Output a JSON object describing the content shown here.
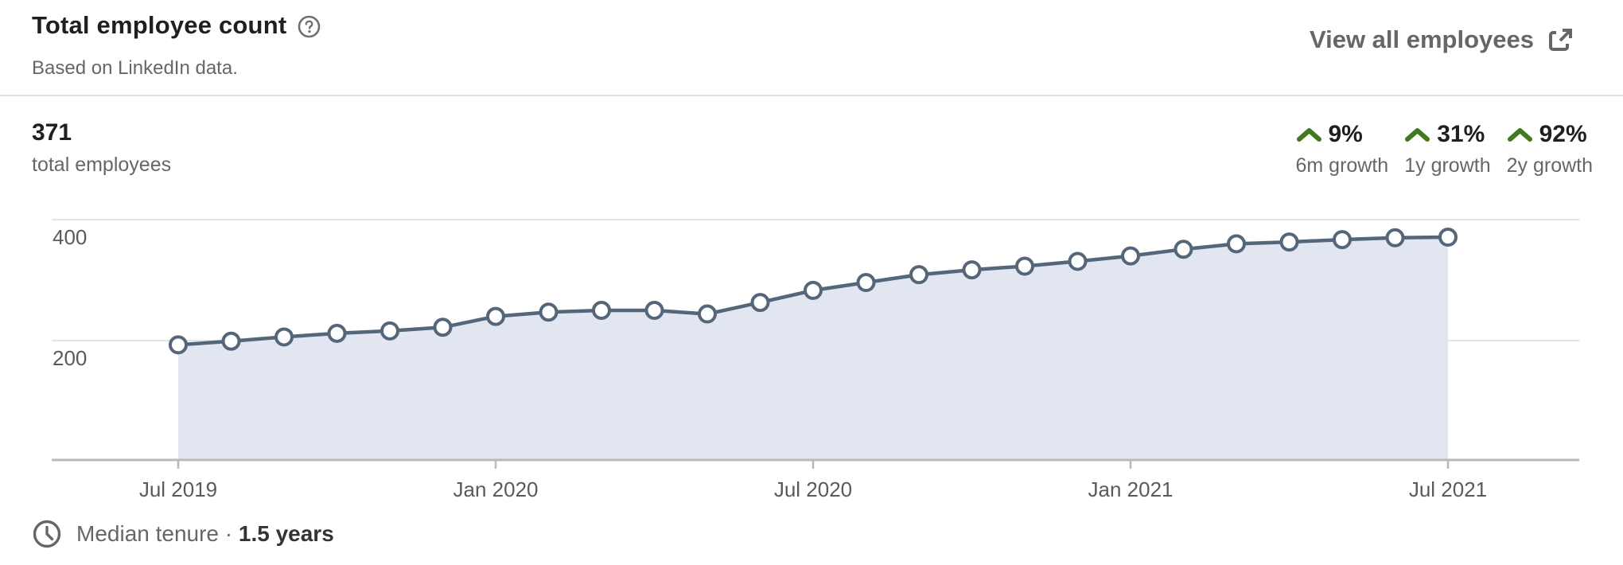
{
  "header": {
    "title": "Total employee count",
    "subtitle": "Based on LinkedIn data.",
    "view_all_label": "View all employees"
  },
  "summary": {
    "value": "371",
    "label": "total employees"
  },
  "growth_stats": [
    {
      "value": "9%",
      "label": "6m growth"
    },
    {
      "value": "31%",
      "label": "1y growth"
    },
    {
      "value": "92%",
      "label": "2y growth"
    }
  ],
  "footer": {
    "label": "Median tenure ·",
    "value": "1.5 years"
  },
  "colors": {
    "growth_green": "#3E7B20",
    "line": "#54667A",
    "area_fill": "#E1E6F0",
    "grid": "#E4E4E4",
    "axis": "#B9B9B9",
    "axis_text": "#5A5A5A",
    "icon_gray": "#6B6B6B"
  },
  "chart_data": {
    "type": "area",
    "series_name": "Total employee count",
    "x": [
      "Jul 2019",
      "Aug 2019",
      "Sep 2019",
      "Oct 2019",
      "Nov 2019",
      "Dec 2019",
      "Jan 2020",
      "Feb 2020",
      "Mar 2020",
      "Apr 2020",
      "May 2020",
      "Jun 2020",
      "Jul 2020",
      "Aug 2020",
      "Sep 2020",
      "Oct 2020",
      "Nov 2020",
      "Dec 2020",
      "Jan 2021",
      "Feb 2021",
      "Mar 2021",
      "Apr 2021",
      "May 2021",
      "Jun 2021",
      "Jul 2021"
    ],
    "values": [
      193,
      199,
      206,
      212,
      216,
      222,
      240,
      247,
      250,
      250,
      244,
      263,
      283,
      296,
      309,
      317,
      323,
      331,
      340,
      351,
      360,
      363,
      367,
      370,
      371
    ],
    "xticks": [
      "Jul 2019",
      "Jan 2020",
      "Jul 2020",
      "Jan 2021",
      "Jul 2021"
    ],
    "yticks": [
      200,
      400
    ],
    "ylim": [
      0,
      460
    ],
    "grid": true,
    "markers": true,
    "legend": false
  }
}
